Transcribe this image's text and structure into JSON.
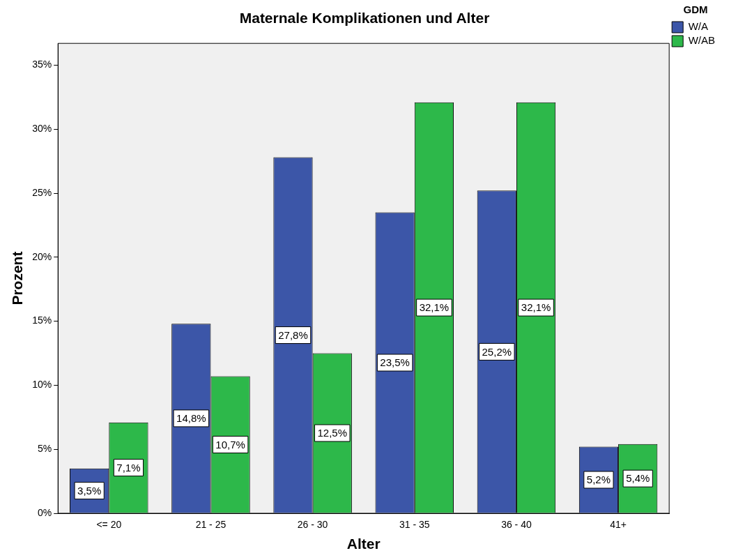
{
  "chart_data": {
    "type": "bar",
    "title": "Maternale Komplikationen und Alter",
    "xlabel": "Alter",
    "ylabel": "Prozent",
    "legend_title": "GDM",
    "legend": "top right",
    "grid": false,
    "categories": [
      "<= 20",
      "21 - 25",
      "26 - 30",
      "31 - 35",
      "36 - 40",
      "41+"
    ],
    "ylim": [
      0,
      36.7
    ],
    "yticks": [
      {
        "value": 0,
        "label": "0%"
      },
      {
        "value": 5,
        "label": "5%"
      },
      {
        "value": 10,
        "label": "10%"
      },
      {
        "value": 15,
        "label": "15%"
      },
      {
        "value": 20,
        "label": "20%"
      },
      {
        "value": 25,
        "label": "25%"
      },
      {
        "value": 30,
        "label": "30%"
      },
      {
        "value": 35,
        "label": "35%"
      }
    ],
    "series": [
      {
        "name": "W/A",
        "color": "#3c56a8",
        "values": [
          3.5,
          14.8,
          27.8,
          23.5,
          25.2,
          5.2
        ],
        "value_labels": [
          "3,5%",
          "14,8%",
          "27,8%",
          "23,5%",
          "25,2%",
          "5,2%"
        ]
      },
      {
        "name": "W/AB",
        "color": "#2db84a",
        "values": [
          7.1,
          10.7,
          12.5,
          32.1,
          32.1,
          5.4
        ],
        "value_labels": [
          "7,1%",
          "10,7%",
          "12,5%",
          "32,1%",
          "32,1%",
          "5,4%"
        ]
      }
    ]
  }
}
